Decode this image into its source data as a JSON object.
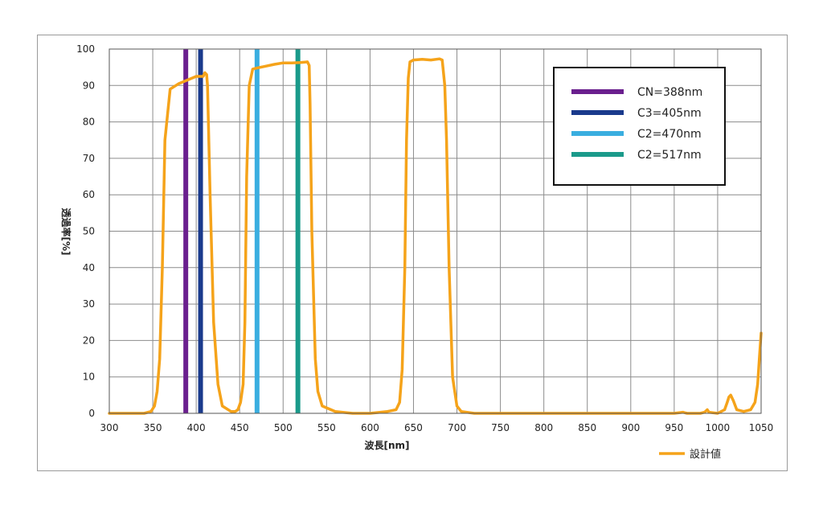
{
  "chart_data": {
    "type": "line",
    "xlabel": "波長[nm]",
    "ylabel": "透過率[%]",
    "xlim": [
      300,
      1050
    ],
    "ylim": [
      0,
      100
    ],
    "xticks": [
      300,
      350,
      400,
      450,
      500,
      550,
      600,
      650,
      700,
      750,
      800,
      850,
      900,
      950,
      1000,
      1050
    ],
    "yticks": [
      0,
      10,
      20,
      30,
      40,
      50,
      60,
      70,
      80,
      90,
      100
    ],
    "grid": true,
    "legend_position": "bottom-right",
    "series": [
      {
        "name": "設計値",
        "color": "#f5a31a",
        "x": [
          300,
          340,
          348,
          352,
          355,
          358,
          361,
          364,
          370,
          380,
          390,
          400,
          405,
          408,
          410,
          412,
          413,
          416,
          420,
          425,
          430,
          440,
          445,
          448,
          451,
          454,
          456,
          458,
          461,
          465,
          470,
          480,
          490,
          500,
          510,
          520,
          528,
          530,
          531,
          533,
          537,
          540,
          545,
          560,
          580,
          600,
          620,
          630,
          634,
          637,
          640,
          642,
          644,
          646,
          650,
          660,
          670,
          680,
          683,
          686,
          688,
          691,
          695,
          700,
          705,
          720,
          800,
          900,
          950,
          960,
          963,
          965,
          980,
          985,
          988,
          990,
          1000,
          1008,
          1011,
          1013,
          1015,
          1018,
          1022,
          1030,
          1038,
          1043,
          1046,
          1048,
          1050
        ],
        "y": [
          0,
          0,
          0.5,
          2,
          6,
          15,
          40,
          75,
          89,
          90.5,
          91.5,
          92.5,
          92.5,
          92.5,
          93.5,
          93,
          90,
          60,
          25,
          8,
          2,
          0.5,
          0.5,
          1,
          3,
          8,
          25,
          65,
          90,
          94.5,
          94.8,
          95.3,
          95.8,
          96.2,
          96.2,
          96.3,
          96.5,
          95.5,
          85,
          50,
          15,
          6,
          2,
          0.5,
          0,
          0,
          0.5,
          1,
          3,
          12,
          40,
          75,
          92,
          96.5,
          97,
          97.2,
          97,
          97.3,
          97,
          90,
          75,
          40,
          10,
          2,
          0.5,
          0,
          0,
          0,
          0,
          0.3,
          0.1,
          0,
          0,
          0.3,
          1,
          0.3,
          0,
          1,
          3,
          4.5,
          5,
          3.5,
          1,
          0.5,
          1,
          3,
          8,
          15,
          22
        ]
      }
    ],
    "markers": [
      {
        "label": "CN=388nm",
        "x": 388,
        "color": "#6a1f8e"
      },
      {
        "label": "C3=405nm",
        "x": 405,
        "color": "#1a3a8c"
      },
      {
        "label": "C2=470nm",
        "x": 470,
        "color": "#3aaee0"
      },
      {
        "label": "C2=517nm",
        "x": 517,
        "color": "#1a9a8a"
      }
    ]
  }
}
